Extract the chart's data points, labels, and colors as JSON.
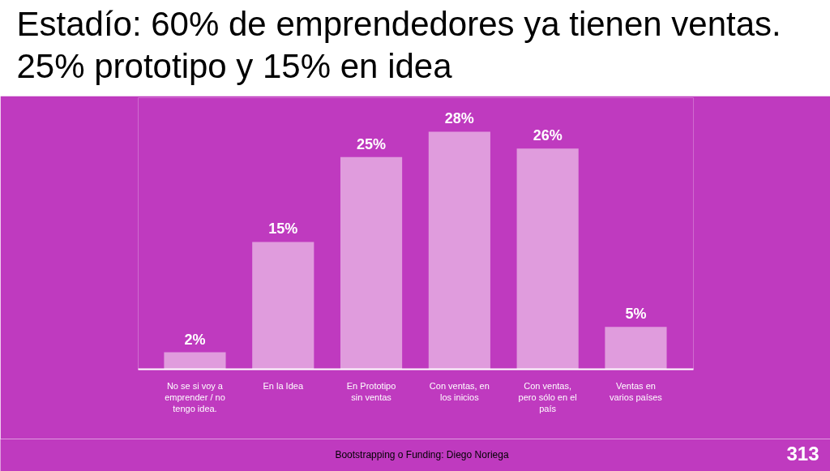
{
  "chart_data": {
    "type": "bar",
    "title": "Estadío: 60% de emprendedores ya tienen ventas. 25% prototipo y 15% en idea",
    "categories": [
      "No se si voy a emprender / no tengo idea.",
      "En la Idea",
      "En Prototipo sin ventas",
      "Con ventas, en los inicios",
      "Con ventas, pero sólo en el país",
      "Ventas en varios países"
    ],
    "values": [
      2,
      15,
      25,
      28,
      26,
      5
    ],
    "color": "#e09cdd",
    "value_labels": [
      "2%",
      "15%",
      "25%",
      "28%",
      "26%",
      "5%"
    ],
    "ylim": [
      0,
      32
    ],
    "tick_labels": "x",
    "annotations": [
      "Bootstrapping o Funding: Diego Noriega",
      "313"
    ]
  }
}
